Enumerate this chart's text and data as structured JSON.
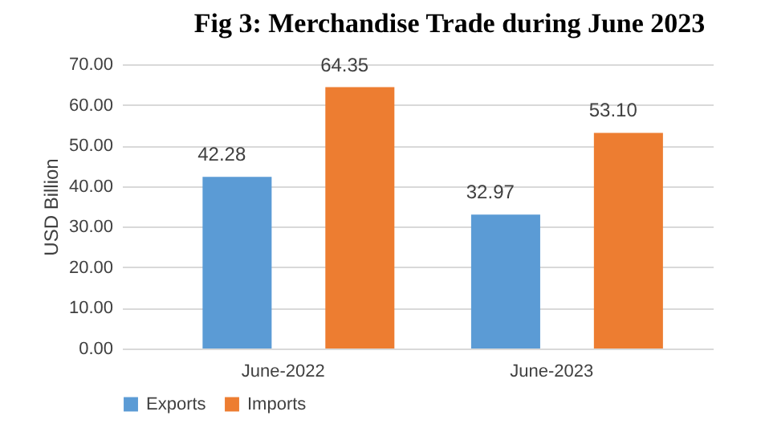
{
  "chart_data": {
    "type": "bar",
    "title": "Fig 3: Merchandise Trade during June 2023",
    "ylabel": "USD Billion",
    "categories": [
      "June-2022",
      "June-2023"
    ],
    "series": [
      {
        "name": "Exports",
        "color": "#5b9bd5",
        "values": [
          42.28,
          32.97
        ],
        "value_labels": [
          "42.28",
          "32.97"
        ]
      },
      {
        "name": "Imports",
        "color": "#ed7d31",
        "values": [
          64.35,
          53.1
        ],
        "value_labels": [
          "64.35",
          "53.10"
        ]
      }
    ],
    "ylim": [
      0,
      70
    ],
    "yticks": [
      {
        "value": 0,
        "label": "0.00"
      },
      {
        "value": 10,
        "label": "10.00"
      },
      {
        "value": 20,
        "label": "20.00"
      },
      {
        "value": 30,
        "label": "30.00"
      },
      {
        "value": 40,
        "label": "40.00"
      },
      {
        "value": 50,
        "label": "50.00"
      },
      {
        "value": 60,
        "label": "60.00"
      },
      {
        "value": 70,
        "label": "70.00"
      }
    ],
    "grid": "y",
    "legend": "bottom"
  }
}
